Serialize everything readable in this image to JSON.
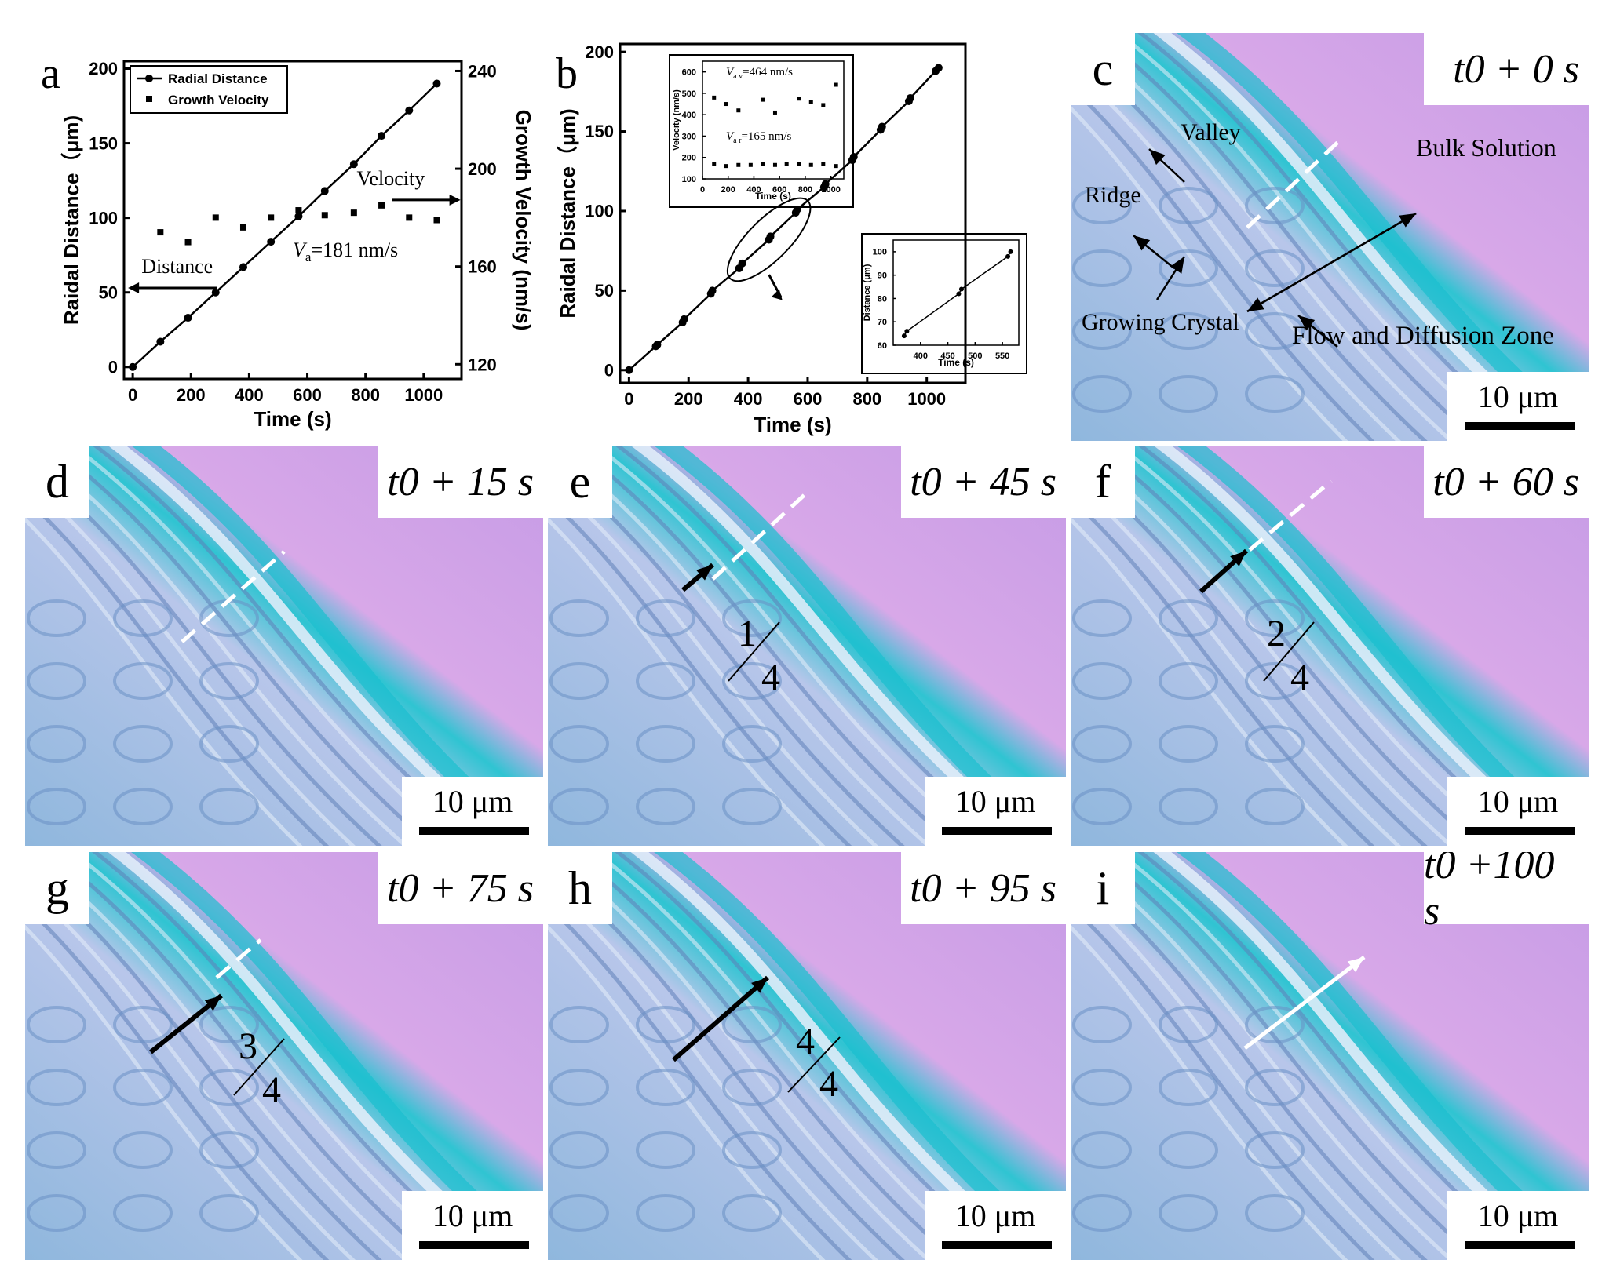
{
  "panels": {
    "a": {
      "label": "a"
    },
    "b": {
      "label": "b"
    },
    "c": {
      "label": "c",
      "time": "t0 +   0 s",
      "scale": "10 μm",
      "annotations": {
        "valley": "Valley",
        "ridge": "Ridge",
        "growing": "Growing Crystal",
        "bulk": "Bulk Solution",
        "zone": "Flow and Diffusion Zone"
      }
    },
    "d": {
      "label": "d",
      "time": "t0 + 15 s",
      "scale": "10 μm"
    },
    "e": {
      "label": "e",
      "time": "t0 + 45 s",
      "scale": "10 μm",
      "fraction_num": "1",
      "fraction_den": "4"
    },
    "f": {
      "label": "f",
      "time": "t0 + 60 s",
      "scale": "10 μm",
      "fraction_num": "2",
      "fraction_den": "4"
    },
    "g": {
      "label": "g",
      "time": "t0 + 75 s",
      "scale": "10 μm",
      "fraction_num": "3",
      "fraction_den": "4"
    },
    "h": {
      "label": "h",
      "time": "t0 + 95 s",
      "scale": "10 μm",
      "fraction_num": "4",
      "fraction_den": "4"
    },
    "i": {
      "label": "i",
      "time": "t0 +100 s",
      "scale": "10 μm"
    }
  },
  "chart_data": [
    {
      "type": "line",
      "panel": "a",
      "xlabel": "Time (s)",
      "ylabel": "Raidal Distance（μm)",
      "y2label": "Growth Velocity (nm/s)",
      "xlim": [
        -30,
        1130
      ],
      "ylim": [
        -8,
        205
      ],
      "y2lim": [
        114,
        244
      ],
      "xticks": [
        0,
        200,
        400,
        600,
        800,
        1000
      ],
      "yticks": [
        0,
        50,
        100,
        150,
        200
      ],
      "y2ticks": [
        120,
        160,
        200,
        240
      ],
      "legend": [
        "Radial Distance",
        "Growth Velocity"
      ],
      "legend_position": "top-left",
      "annotation_velocity": "Velocity",
      "annotation_distance": "Distance",
      "annotation_va": "=181 nm/s",
      "series": [
        {
          "name": "Radial Distance",
          "axis": "left",
          "x": [
            0,
            95,
            190,
            285,
            380,
            475,
            570,
            660,
            760,
            855,
            950,
            1045
          ],
          "y": [
            0,
            17,
            33,
            50,
            67,
            84,
            101,
            118,
            136,
            155,
            172,
            190
          ]
        },
        {
          "name": "Growth Velocity",
          "axis": "right",
          "x": [
            95,
            190,
            285,
            380,
            475,
            570,
            660,
            760,
            855,
            950,
            1045
          ],
          "y": [
            174,
            170,
            180,
            176,
            180,
            183,
            181,
            182,
            185,
            180,
            179
          ]
        }
      ]
    },
    {
      "type": "line",
      "panel": "b",
      "xlabel": "Time (s)",
      "ylabel": "Raidal Distance（μm)",
      "xlim": [
        -30,
        1130
      ],
      "ylim": [
        -8,
        205
      ],
      "xticks": [
        0,
        200,
        400,
        600,
        800,
        1000
      ],
      "yticks": [
        0,
        50,
        100,
        150,
        200
      ],
      "series": [
        {
          "name": "",
          "x": [
            0,
            90,
            95,
            180,
            185,
            275,
            280,
            370,
            380,
            470,
            475,
            560,
            565,
            655,
            660,
            750,
            755,
            845,
            850,
            940,
            945,
            1030,
            1040
          ],
          "y": [
            0,
            15,
            16,
            30,
            32,
            48,
            50,
            64,
            67,
            82,
            84,
            99,
            101,
            115,
            117,
            132,
            134,
            151,
            153,
            169,
            171,
            188,
            190
          ]
        }
      ],
      "inset_velocity": {
        "ylabel": "Velocity (nm/s)",
        "xlabel": "Time (s)",
        "xlim": [
          0,
          1100
        ],
        "ylim": [
          100,
          650
        ],
        "xticks": [
          0,
          200,
          400,
          600,
          800,
          1000
        ],
        "yticks": [
          100,
          200,
          300,
          400,
          500,
          600
        ],
        "annotation_av": "=464 nm/s",
        "annotation_ar": "=165 nm/s",
        "high": {
          "x": [
            90,
            185,
            280,
            470,
            565,
            750,
            845,
            940,
            1040
          ],
          "y": [
            480,
            450,
            420,
            470,
            410,
            475,
            460,
            445,
            540
          ]
        },
        "low": {
          "x": [
            90,
            185,
            280,
            375,
            470,
            565,
            655,
            750,
            845,
            940,
            1040
          ],
          "y": [
            170,
            160,
            165,
            165,
            170,
            165,
            170,
            170,
            165,
            170,
            160
          ]
        }
      },
      "inset_distance": {
        "ylabel": "Distance (μm)",
        "xlabel": "Time (s)",
        "xlim": [
          350,
          580
        ],
        "ylim": [
          60,
          105
        ],
        "xticks": [
          400,
          450,
          500,
          550
        ],
        "yticks": [
          60,
          70,
          80,
          90,
          100
        ],
        "x": [
          370,
          375,
          470,
          475,
          560,
          565
        ],
        "y": [
          64,
          66,
          82,
          84,
          98,
          100
        ]
      }
    }
  ]
}
